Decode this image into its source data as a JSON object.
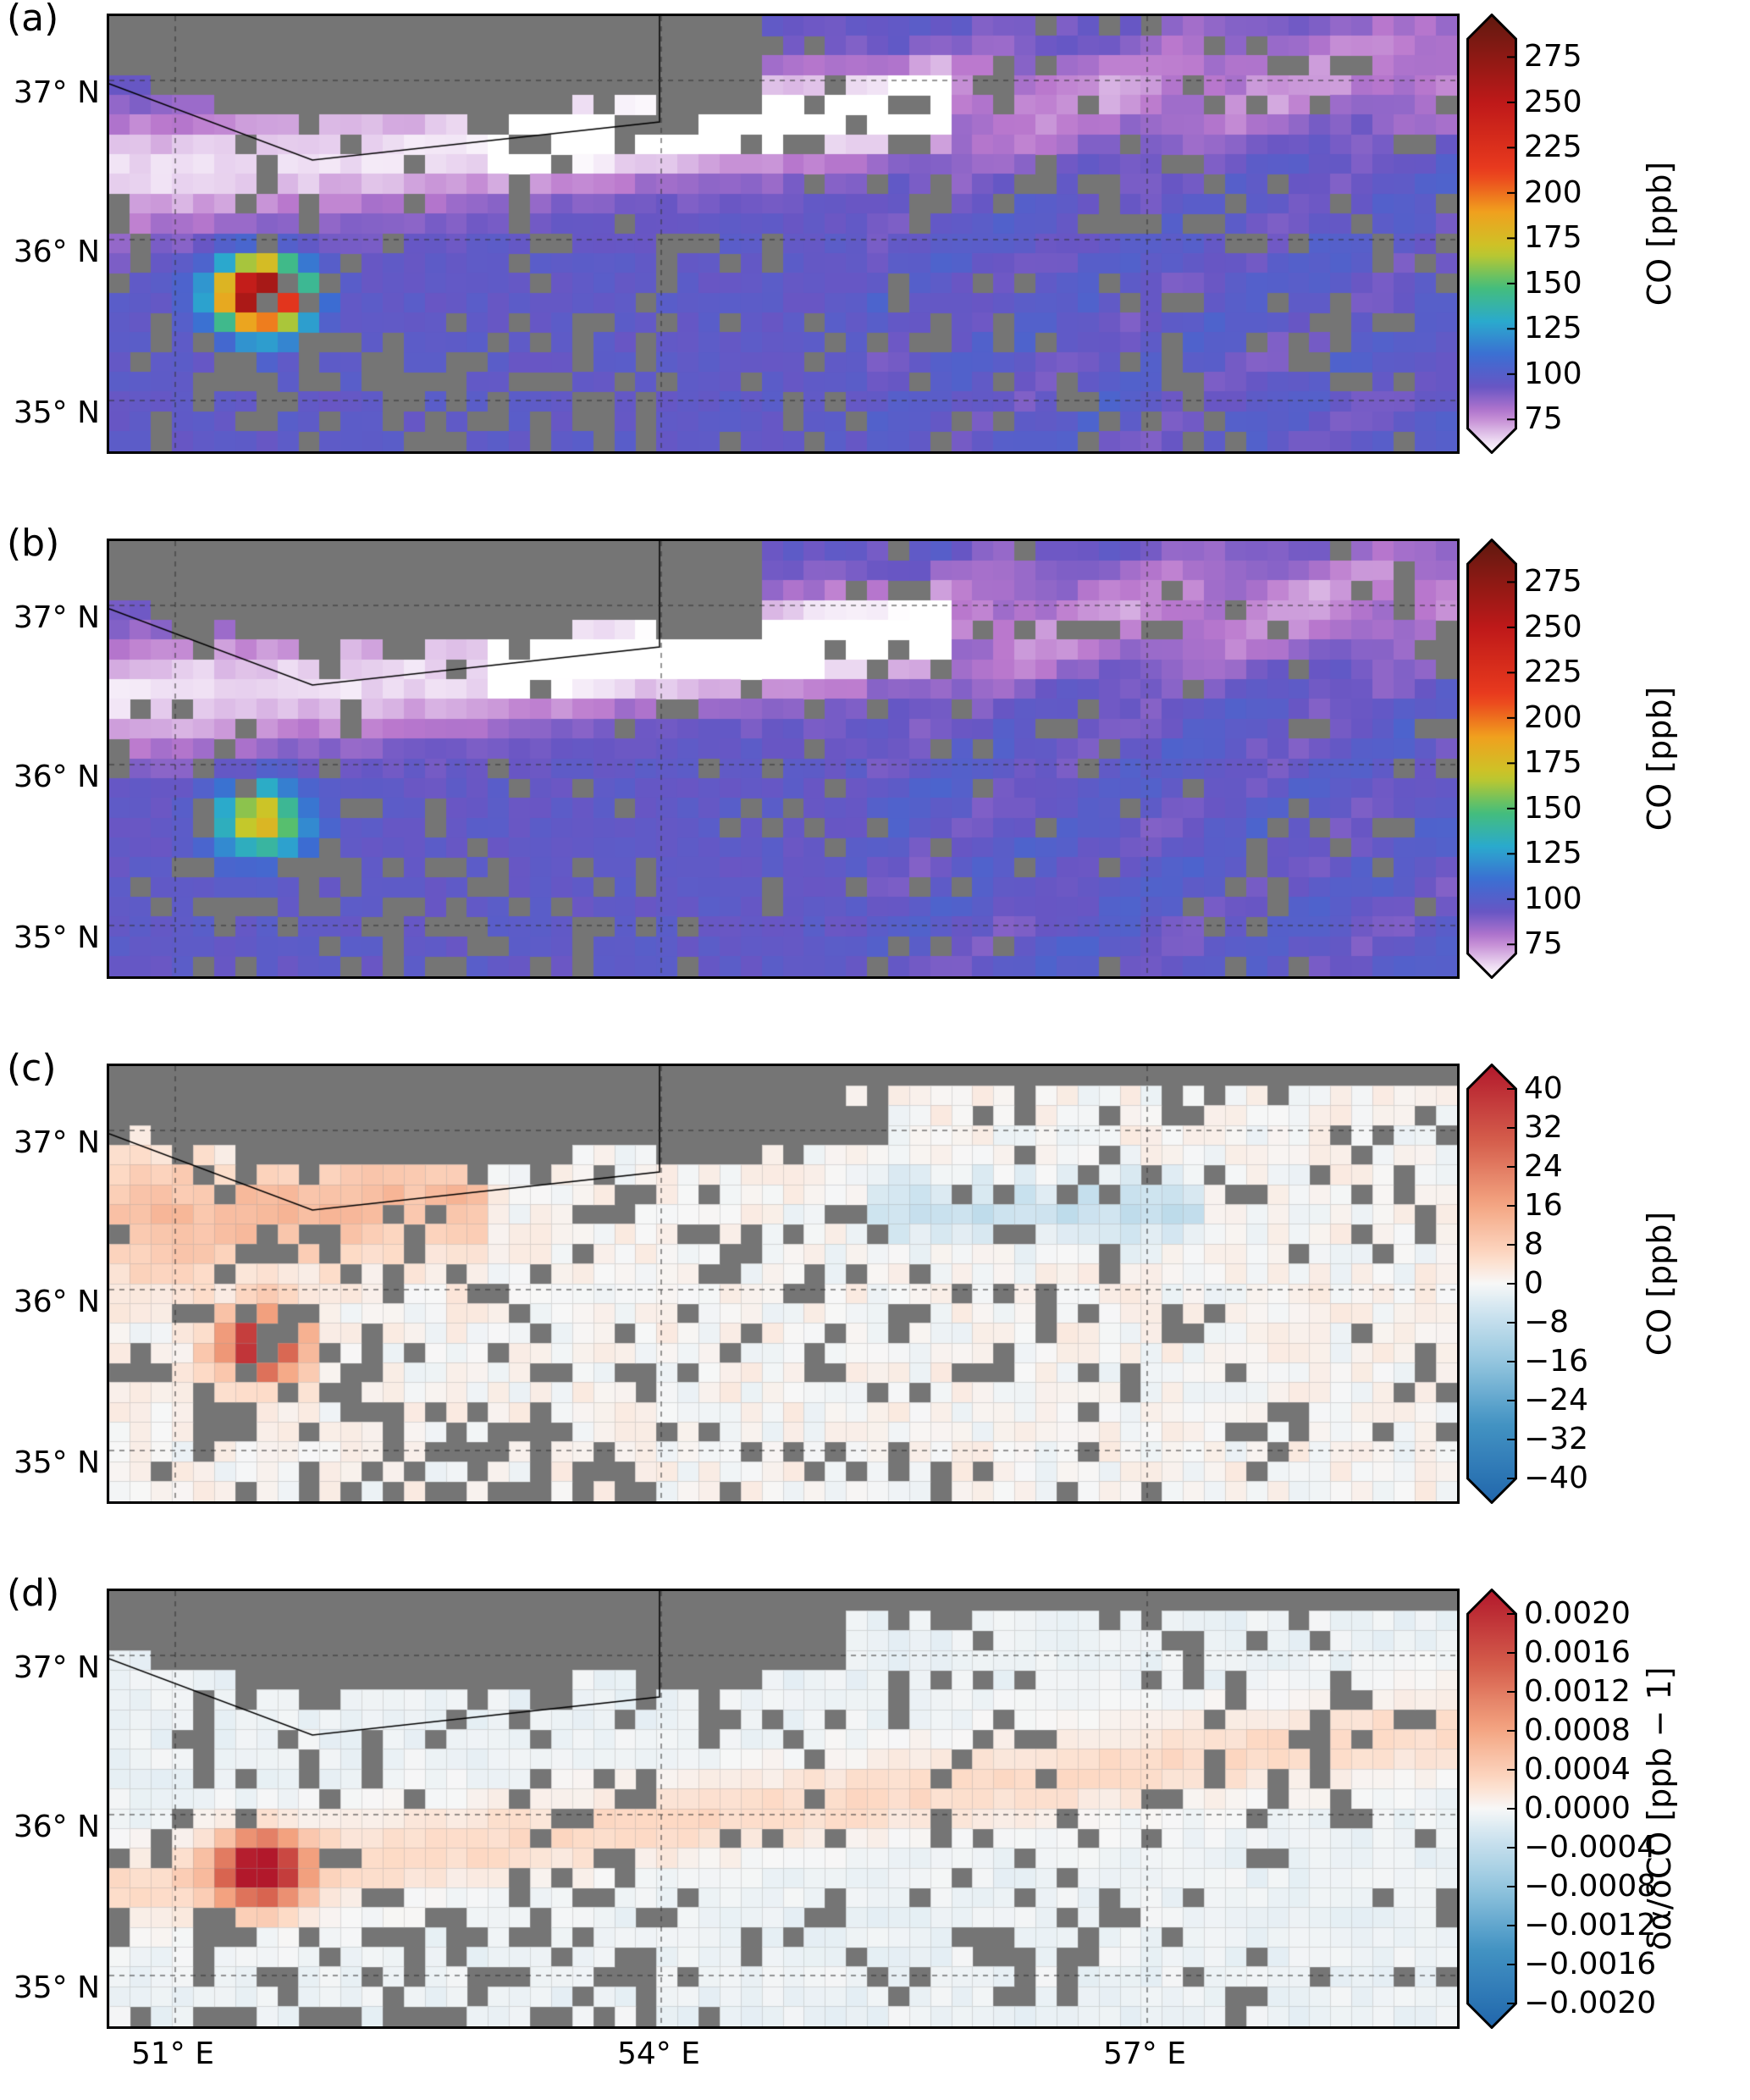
{
  "panels": [
    {
      "label": "(a)",
      "lat_labels": [
        "37° N",
        "36° N",
        "35° N"
      ],
      "colorbar": {
        "label": "CO [ppb]",
        "colormap": "purple-blue-rainbow",
        "ticks": [
          "275",
          "250",
          "225",
          "200",
          "175",
          "150",
          "125",
          "100",
          "75"
        ],
        "range": [
          70,
          285
        ]
      }
    },
    {
      "label": "(b)",
      "lat_labels": [
        "37° N",
        "36° N",
        "35° N"
      ],
      "colorbar": {
        "label": "CO [ppb]",
        "colormap": "purple-blue-rainbow",
        "ticks": [
          "275",
          "250",
          "225",
          "200",
          "175",
          "150",
          "125",
          "100",
          "75"
        ],
        "range": [
          70,
          285
        ]
      }
    },
    {
      "label": "(c)",
      "lat_labels": [
        "37° N",
        "36° N",
        "35° N"
      ],
      "colorbar": {
        "label": "CO [ppb]",
        "colormap": "red-blue-diverging",
        "ticks": [
          "40",
          "32",
          "24",
          "16",
          "8",
          "0",
          "−8",
          "−16",
          "−24",
          "−32",
          "−40"
        ],
        "range": [
          -40,
          40
        ]
      }
    },
    {
      "label": "(d)",
      "lat_labels": [
        "37° N",
        "36° N",
        "35° N"
      ],
      "colorbar": {
        "label": "δα/δCO  [ppb − 1]",
        "colormap": "red-blue-diverging",
        "ticks": [
          "0.0020",
          "0.0016",
          "0.0012",
          "0.0008",
          "0.0004",
          "0.0000",
          "−0.0004",
          "−0.0008",
          "−0.0012",
          "−0.0016",
          "−0.0020"
        ],
        "range": [
          -0.002,
          0.002
        ]
      }
    }
  ],
  "lon_labels": [
    "51° E",
    "54° E",
    "57° E"
  ],
  "colors": {
    "missing": "#757575",
    "frame": "#000000",
    "gridline": "#333333"
  }
}
